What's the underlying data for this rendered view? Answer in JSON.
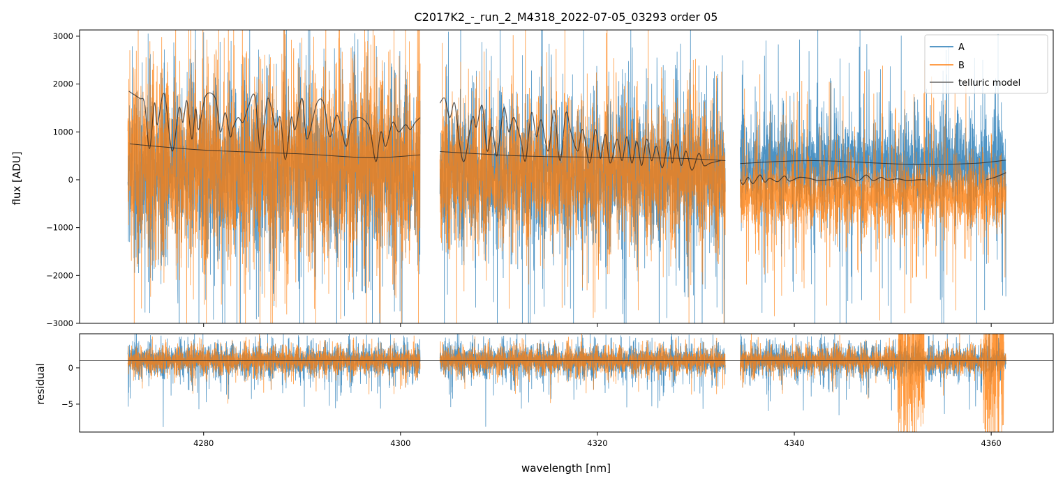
{
  "chart_data": [
    {
      "type": "line",
      "title": "C2017K2_-_run_2_M4318_2022-07-05_03293  order 05",
      "xlabel": "",
      "ylabel": "flux [ADU]",
      "xlim": [
        4267.4,
        4366.3
      ],
      "ylim": [
        -3000,
        3130
      ],
      "xticks": [
        4280,
        4300,
        4320,
        4340,
        4360
      ],
      "yticks": [
        -3000,
        -2000,
        -1000,
        0,
        1000,
        2000,
        3000
      ],
      "ytick_labels": [
        "−3000",
        "−2000",
        "−1000",
        "0",
        "1000",
        "2000",
        "3000"
      ],
      "legend": {
        "placement": "top-right",
        "entries": [
          "A",
          "B",
          "telluric model"
        ]
      },
      "colors": {
        "A": "#1f77b4",
        "B": "#ff7f0e",
        "telluric model": "#333333"
      },
      "segments": [
        [
          4272.3,
          4302.0
        ],
        [
          4304.0,
          4333.0
        ],
        [
          4334.5,
          4361.5
        ]
      ],
      "series": [
        {
          "name": "A",
          "note": "noisy spectrum, per segment mean/std",
          "mean": [
            200,
            150,
            320
          ],
          "std": [
            750,
            650,
            420
          ]
        },
        {
          "name": "B",
          "note": "noisy spectrum, per segment mean/std",
          "mean": [
            250,
            100,
            -320
          ],
          "std": [
            900,
            600,
            330
          ]
        },
        {
          "name": "telluric model",
          "segments": [
            [
              [
                4272.4,
                1850
              ],
              [
                4273.5,
                1700
              ],
              [
                4274.0,
                1600
              ],
              [
                4274.5,
                650
              ],
              [
                4275.0,
                1600
              ],
              [
                4275.3,
                1150
              ],
              [
                4276.0,
                1800
              ],
              [
                4276.8,
                600
              ],
              [
                4277.5,
                1500
              ],
              [
                4277.9,
                1200
              ],
              [
                4278.3,
                1650
              ],
              [
                4278.8,
                850
              ],
              [
                4279.2,
                1480
              ],
              [
                4279.5,
                1050
              ],
              [
                4280.2,
                1750
              ],
              [
                4281.2,
                1700
              ],
              [
                4281.7,
                1000
              ],
              [
                4282.2,
                1400
              ],
              [
                4282.7,
                900
              ],
              [
                4283.0,
                1100
              ],
              [
                4283.5,
                1300
              ],
              [
                4284.0,
                1200
              ],
              [
                4284.5,
                1500
              ],
              [
                4285.2,
                1750
              ],
              [
                4285.8,
                600
              ],
              [
                4286.5,
                1700
              ],
              [
                4287.3,
                1100
              ],
              [
                4287.8,
                1300
              ],
              [
                4288.3,
                420
              ],
              [
                4288.9,
                1300
              ],
              [
                4289.3,
                1050
              ],
              [
                4290.0,
                1700
              ],
              [
                4290.5,
                850
              ],
              [
                4291.5,
                1600
              ],
              [
                4292.2,
                1600
              ],
              [
                4292.8,
                900
              ],
              [
                4293.5,
                1350
              ],
              [
                4294.0,
                1050
              ],
              [
                4294.5,
                700
              ],
              [
                4295.0,
                1200
              ],
              [
                4295.7,
                1300
              ],
              [
                4296.3,
                1250
              ],
              [
                4296.9,
                1050
              ],
              [
                4297.5,
                380
              ],
              [
                4298.0,
                1000
              ],
              [
                4298.5,
                700
              ],
              [
                4299.2,
                1200
              ],
              [
                4299.8,
                1000
              ],
              [
                4300.5,
                1150
              ],
              [
                4301.0,
                1050
              ],
              [
                4301.5,
                1200
              ],
              [
                4302.0,
                1300
              ]
            ],
            [
              [
                4304.0,
                1600
              ],
              [
                4304.5,
                1700
              ],
              [
                4305.0,
                1300
              ],
              [
                4305.5,
                1600
              ],
              [
                4306.0,
                750
              ],
              [
                4306.5,
                400
              ],
              [
                4307.3,
                1300
              ],
              [
                4307.7,
                1100
              ],
              [
                4308.3,
                1550
              ],
              [
                4308.8,
                600
              ],
              [
                4309.3,
                1100
              ],
              [
                4309.8,
                500
              ],
              [
                4310.5,
                1500
              ],
              [
                4311.0,
                1000
              ],
              [
                4311.5,
                1300
              ],
              [
                4312.2,
                850
              ],
              [
                4312.7,
                400
              ],
              [
                4313.3,
                1400
              ],
              [
                4313.8,
                900
              ],
              [
                4314.3,
                1250
              ],
              [
                4315.0,
                600
              ],
              [
                4315.6,
                1450
              ],
              [
                4316.2,
                400
              ],
              [
                4316.8,
                1400
              ],
              [
                4317.3,
                1000
              ],
              [
                4318.0,
                600
              ],
              [
                4318.5,
                1050
              ],
              [
                4319.2,
                350
              ],
              [
                4319.8,
                1050
              ],
              [
                4320.3,
                450
              ],
              [
                4320.8,
                950
              ],
              [
                4321.3,
                350
              ],
              [
                4322.0,
                850
              ],
              [
                4322.5,
                400
              ],
              [
                4323.0,
                900
              ],
              [
                4323.5,
                350
              ],
              [
                4324.0,
                800
              ],
              [
                4324.5,
                300
              ],
              [
                4325.0,
                850
              ],
              [
                4325.5,
                400
              ],
              [
                4326.0,
                700
              ],
              [
                4326.6,
                250
              ],
              [
                4327.2,
                800
              ],
              [
                4327.6,
                350
              ],
              [
                4328.0,
                750
              ],
              [
                4328.5,
                300
              ],
              [
                4329.0,
                600
              ],
              [
                4329.6,
                200
              ],
              [
                4330.3,
                550
              ],
              [
                4330.8,
                300
              ],
              [
                4331.5,
                350
              ],
              [
                4332.5,
                400
              ]
            ],
            [
              [
                4334.5,
                0
              ],
              [
                4334.8,
                -100
              ],
              [
                4335.3,
                50
              ],
              [
                4335.8,
                -80
              ],
              [
                4336.5,
                100
              ],
              [
                4337.0,
                -50
              ],
              [
                4337.5,
                30
              ],
              [
                4338.3,
                -40
              ],
              [
                4339.0,
                80
              ],
              [
                4339.5,
                -30
              ],
              [
                4340.5,
                50
              ],
              [
                4341.5,
                30
              ],
              [
                4342.5,
                -20
              ],
              [
                4343.5,
                0
              ],
              [
                4344.5,
                30
              ],
              [
                4345.5,
                60
              ],
              [
                4346.5,
                -20
              ],
              [
                4347.3,
                100
              ],
              [
                4348.0,
                -20
              ],
              [
                4348.8,
                50
              ],
              [
                4349.5,
                -10
              ],
              [
                4350.5,
                20
              ],
              [
                4351.5,
                -20
              ],
              [
                4352.5,
                0
              ],
              [
                4353.3,
                0
              ]
            ],
            [
              [
                4359.5,
                0
              ],
              [
                4360.5,
                60
              ],
              [
                4361.5,
                150
              ]
            ]
          ]
        },
        {
          "name": "continuum",
          "segments": [
            [
              [
                4272.5,
                750
              ],
              [
                4280,
                620
              ],
              [
                4290,
                540
              ],
              [
                4297,
                460
              ],
              [
                4302,
                520
              ]
            ],
            [
              [
                4304,
                590
              ],
              [
                4312,
                500
              ],
              [
                4320,
                470
              ],
              [
                4328,
                450
              ],
              [
                4333,
                400
              ]
            ],
            [
              [
                4334.5,
                340
              ],
              [
                4342,
                400
              ],
              [
                4352,
                320
              ],
              [
                4358,
                340
              ],
              [
                4361.5,
                410
              ]
            ]
          ]
        }
      ]
    },
    {
      "type": "line",
      "xlabel": "wavelength [nm]",
      "ylabel": "residual",
      "xlim": [
        4267.4,
        4366.3
      ],
      "ylim": [
        -8.85,
        4.7
      ],
      "xticks": [
        4280,
        4300,
        4320,
        4340,
        4360
      ],
      "xtick_labels": [
        "4280",
        "4300",
        "4320",
        "4340",
        "4360"
      ],
      "yticks": [
        -5,
        0
      ],
      "ytick_labels": [
        "−5",
        "0"
      ],
      "reference_line": 1,
      "series": [
        {
          "name": "A",
          "mean": 1,
          "std": 1.0
        },
        {
          "name": "B",
          "mean": 1,
          "std": 0.8,
          "large_deviations": [
            [
              4350.5,
              4353.2
            ],
            [
              4359.2,
              4361.3
            ]
          ]
        }
      ]
    }
  ]
}
